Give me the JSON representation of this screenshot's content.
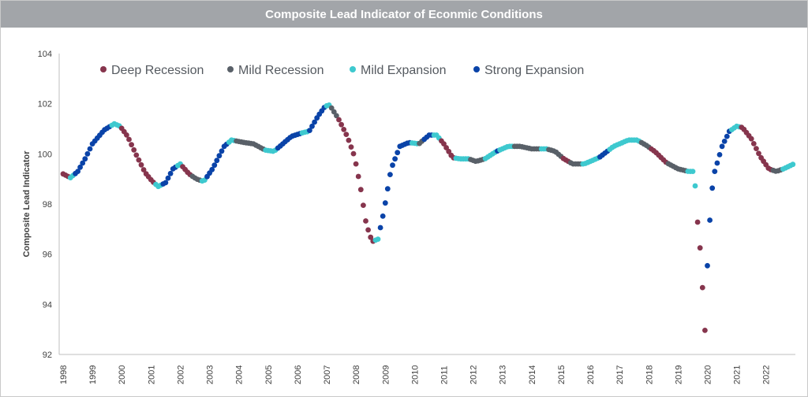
{
  "chart_data": {
    "type": "scatter",
    "title": "Composite Lead Indicator of Econmic Conditions",
    "xlabel": "",
    "ylabel": "Composite Lead Indicator",
    "xlim": [
      1998,
      2022.95
    ],
    "ylim": [
      92,
      104
    ],
    "yticks": [
      "92",
      "94",
      "96",
      "98",
      "100",
      "102",
      "104"
    ],
    "xticks": [
      "1998",
      "1999",
      "2000",
      "2001",
      "2002",
      "2003",
      "2004",
      "2005",
      "2006",
      "2007",
      "2008",
      "2009",
      "2010",
      "2011",
      "2012",
      "2013",
      "2014",
      "2015",
      "2016",
      "2017",
      "2018",
      "2019",
      "2020",
      "2021",
      "2022"
    ],
    "legend_position": "top-left",
    "grid": false,
    "colors": {
      "Deep Recession": "#86354d",
      "Mild Recession": "#596068",
      "Mild Expansion": "#3ec9cf",
      "Strong Expansion": "#0a43a8"
    },
    "keypoints": [
      [
        1998.0,
        99.2
      ],
      [
        1998.25,
        99.05
      ],
      [
        1998.5,
        99.3
      ],
      [
        1998.75,
        99.8
      ],
      [
        1999.0,
        100.4
      ],
      [
        1999.4,
        100.95
      ],
      [
        1999.75,
        101.2
      ],
      [
        1999.95,
        101.1
      ],
      [
        2000.2,
        100.7
      ],
      [
        2000.5,
        99.95
      ],
      [
        2000.8,
        99.25
      ],
      [
        2001.05,
        98.9
      ],
      [
        2001.25,
        98.7
      ],
      [
        2001.5,
        98.85
      ],
      [
        2001.75,
        99.4
      ],
      [
        2002.0,
        99.6
      ],
      [
        2002.3,
        99.2
      ],
      [
        2002.55,
        99.0
      ],
      [
        2002.8,
        98.9
      ],
      [
        2003.1,
        99.4
      ],
      [
        2003.5,
        100.3
      ],
      [
        2003.75,
        100.55
      ],
      [
        2004.2,
        100.45
      ],
      [
        2004.5,
        100.4
      ],
      [
        2004.9,
        100.15
      ],
      [
        2005.2,
        100.1
      ],
      [
        2005.5,
        100.4
      ],
      [
        2005.8,
        100.7
      ],
      [
        2006.2,
        100.85
      ],
      [
        2006.4,
        100.9
      ],
      [
        2006.7,
        101.5
      ],
      [
        2006.95,
        101.9
      ],
      [
        2007.1,
        101.95
      ],
      [
        2007.4,
        101.4
      ],
      [
        2007.7,
        100.7
      ],
      [
        2007.95,
        99.9
      ],
      [
        2008.15,
        98.7
      ],
      [
        2008.35,
        97.2
      ],
      [
        2008.55,
        96.5
      ],
      [
        2008.75,
        96.6
      ],
      [
        2008.95,
        97.7
      ],
      [
        2009.2,
        99.4
      ],
      [
        2009.5,
        100.3
      ],
      [
        2009.8,
        100.45
      ],
      [
        2010.15,
        100.4
      ],
      [
        2010.5,
        100.75
      ],
      [
        2010.75,
        100.75
      ],
      [
        2011.0,
        100.4
      ],
      [
        2011.3,
        99.85
      ],
      [
        2011.55,
        99.8
      ],
      [
        2011.85,
        99.8
      ],
      [
        2012.1,
        99.7
      ],
      [
        2012.4,
        99.8
      ],
      [
        2012.8,
        100.1
      ],
      [
        2013.2,
        100.3
      ],
      [
        2013.6,
        100.3
      ],
      [
        2014.0,
        100.2
      ],
      [
        2014.5,
        100.2
      ],
      [
        2014.8,
        100.1
      ],
      [
        2015.1,
        99.8
      ],
      [
        2015.4,
        99.6
      ],
      [
        2015.8,
        99.6
      ],
      [
        2016.3,
        99.85
      ],
      [
        2016.8,
        100.3
      ],
      [
        2017.3,
        100.55
      ],
      [
        2017.6,
        100.55
      ],
      [
        2017.9,
        100.35
      ],
      [
        2018.2,
        100.1
      ],
      [
        2018.6,
        99.65
      ],
      [
        2019.0,
        99.4
      ],
      [
        2019.35,
        99.3
      ],
      [
        2019.55,
        99.3
      ],
      [
        2019.7,
        96.7
      ],
      [
        2019.8,
        95.8
      ],
      [
        2019.9,
        92.4
      ],
      [
        2019.98,
        95.1
      ],
      [
        2020.08,
        97.3
      ],
      [
        2020.15,
        98.5
      ],
      [
        2020.25,
        99.3
      ],
      [
        2020.5,
        100.3
      ],
      [
        2020.75,
        100.9
      ],
      [
        2021.0,
        101.1
      ],
      [
        2021.2,
        101.05
      ],
      [
        2021.5,
        100.6
      ],
      [
        2021.8,
        99.9
      ],
      [
        2022.1,
        99.4
      ],
      [
        2022.35,
        99.3
      ],
      [
        2022.6,
        99.4
      ],
      [
        2022.95,
        99.6
      ]
    ],
    "regimes": [
      [
        1998.0,
        1998.2,
        "Deep Recession"
      ],
      [
        1998.2,
        1998.35,
        "Mild Expansion"
      ],
      [
        1998.35,
        1999.6,
        "Strong Expansion"
      ],
      [
        1999.6,
        1999.95,
        "Mild Expansion"
      ],
      [
        1999.95,
        2001.15,
        "Deep Recession"
      ],
      [
        2001.15,
        2001.35,
        "Mild Expansion"
      ],
      [
        2001.35,
        2001.85,
        "Strong Expansion"
      ],
      [
        2001.85,
        2002.0,
        "Mild Expansion"
      ],
      [
        2002.0,
        2002.35,
        "Deep Recession"
      ],
      [
        2002.35,
        2002.7,
        "Mild Recession"
      ],
      [
        2002.7,
        2002.9,
        "Mild Expansion"
      ],
      [
        2002.9,
        2003.6,
        "Strong Expansion"
      ],
      [
        2003.6,
        2003.9,
        "Mild Expansion"
      ],
      [
        2003.9,
        2004.9,
        "Mild Recession"
      ],
      [
        2004.9,
        2005.3,
        "Mild Expansion"
      ],
      [
        2005.3,
        2006.1,
        "Strong Expansion"
      ],
      [
        2006.1,
        2006.4,
        "Mild Expansion"
      ],
      [
        2006.4,
        2006.95,
        "Strong Expansion"
      ],
      [
        2006.95,
        2007.15,
        "Mild Expansion"
      ],
      [
        2007.15,
        2007.35,
        "Mild Recession"
      ],
      [
        2007.35,
        2008.65,
        "Deep Recession"
      ],
      [
        2008.65,
        2008.8,
        "Mild Expansion"
      ],
      [
        2008.8,
        2009.9,
        "Strong Expansion"
      ],
      [
        2009.9,
        2010.1,
        "Mild Expansion"
      ],
      [
        2010.1,
        2010.3,
        "Mild Recession"
      ],
      [
        2010.3,
        2010.6,
        "Strong Expansion"
      ],
      [
        2010.6,
        2010.85,
        "Mild Expansion"
      ],
      [
        2010.85,
        2011.4,
        "Deep Recession"
      ],
      [
        2011.4,
        2011.9,
        "Mild Expansion"
      ],
      [
        2011.9,
        2012.4,
        "Mild Recession"
      ],
      [
        2012.4,
        2012.75,
        "Mild Expansion"
      ],
      [
        2012.75,
        2012.9,
        "Strong Expansion"
      ],
      [
        2012.9,
        2013.4,
        "Mild Expansion"
      ],
      [
        2013.4,
        2014.3,
        "Mild Recession"
      ],
      [
        2014.3,
        2014.55,
        "Mild Expansion"
      ],
      [
        2014.55,
        2015.0,
        "Mild Recession"
      ],
      [
        2015.0,
        2015.3,
        "Deep Recession"
      ],
      [
        2015.3,
        2015.7,
        "Mild Recession"
      ],
      [
        2015.7,
        2016.3,
        "Mild Expansion"
      ],
      [
        2016.3,
        2016.6,
        "Strong Expansion"
      ],
      [
        2016.6,
        2017.7,
        "Mild Expansion"
      ],
      [
        2017.7,
        2018.0,
        "Mild Recession"
      ],
      [
        2018.0,
        2018.6,
        "Deep Recession"
      ],
      [
        2018.6,
        2019.3,
        "Mild Recession"
      ],
      [
        2019.3,
        2019.6,
        "Mild Expansion"
      ],
      [
        2019.6,
        2019.93,
        "Deep Recession"
      ],
      [
        2019.93,
        2020.8,
        "Strong Expansion"
      ],
      [
        2020.8,
        2021.1,
        "Mild Expansion"
      ],
      [
        2021.1,
        2022.2,
        "Deep Recession"
      ],
      [
        2022.2,
        2022.5,
        "Mild Recession"
      ],
      [
        2022.5,
        2022.95,
        "Mild Expansion"
      ]
    ]
  }
}
